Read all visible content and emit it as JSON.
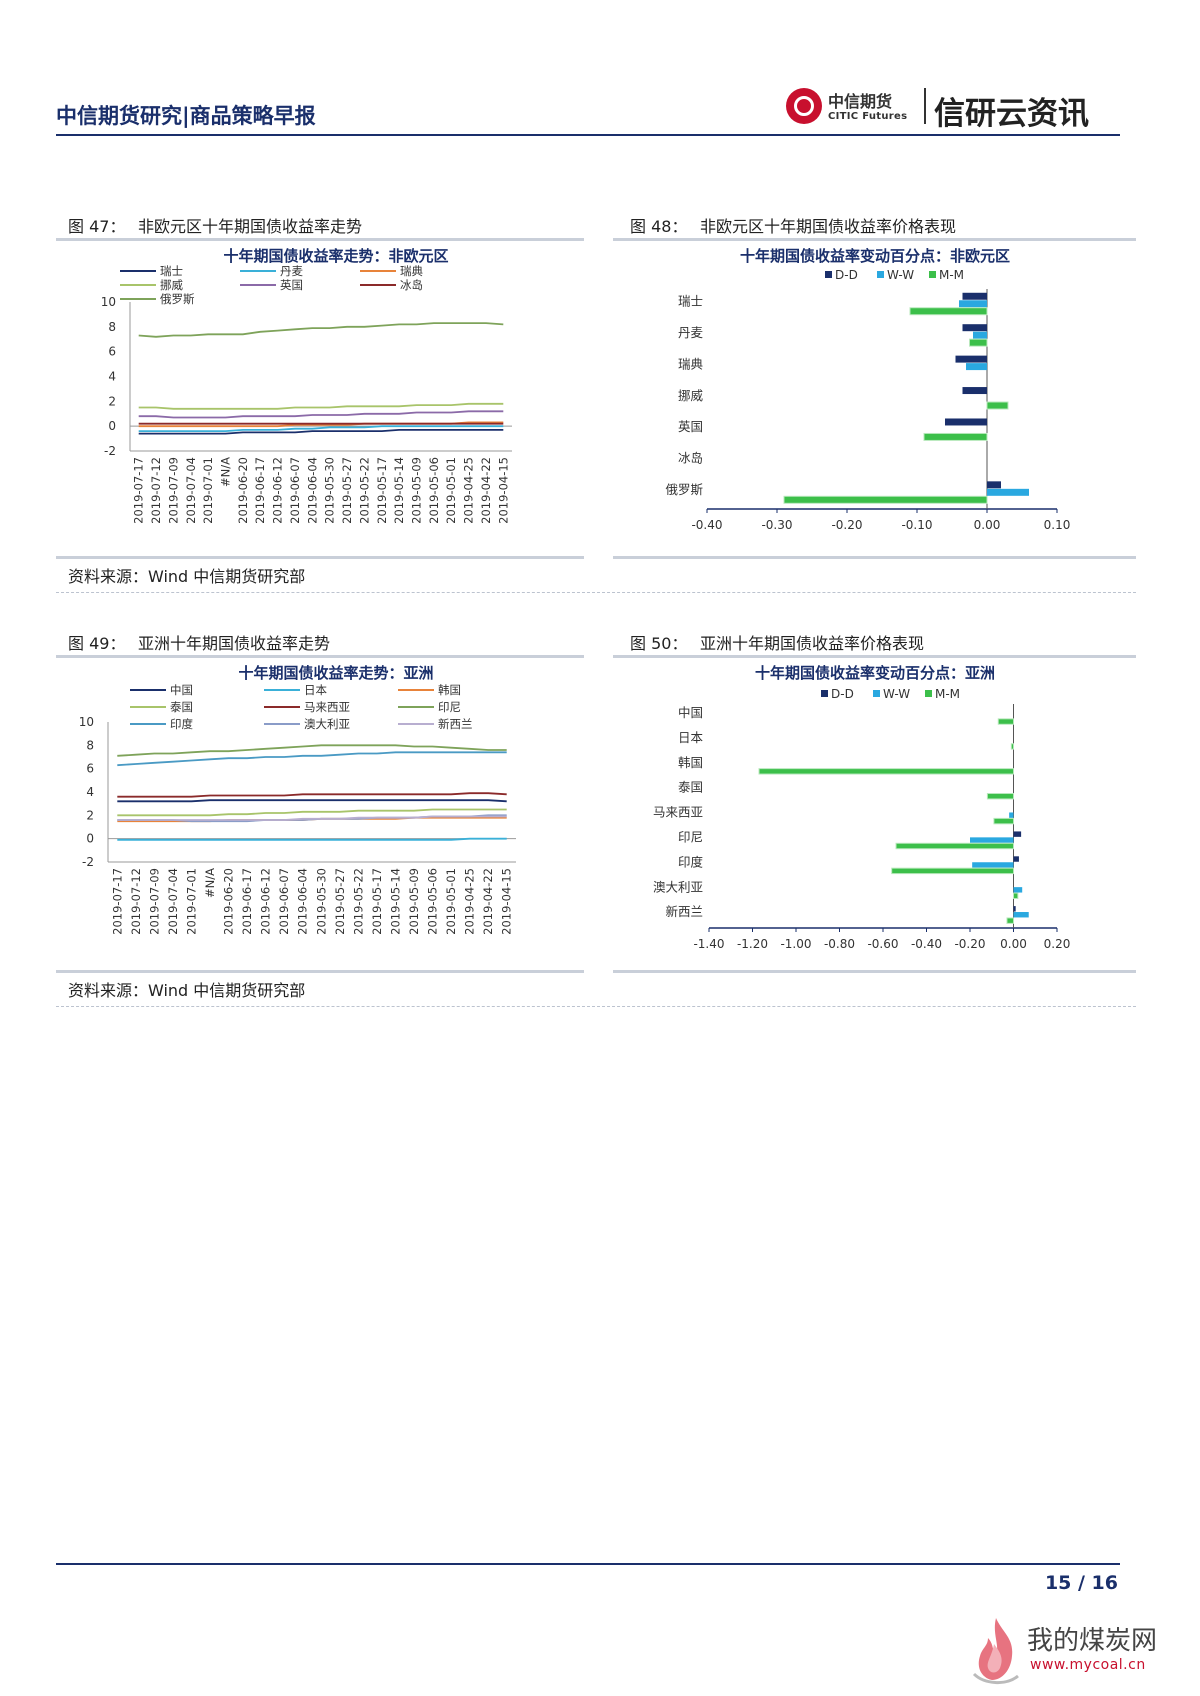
{
  "header": {
    "title": "中信期货研究|商品策略早报",
    "logo_cn": "中信期货",
    "logo_en": "CITIC Futures",
    "brand": "信研云资讯"
  },
  "fig47": {
    "label": "图 47：",
    "caption": "非欧元区十年期国债收益率走势",
    "source": "资料来源：Wind  中信期货研究部"
  },
  "fig48": {
    "label": "图 48：",
    "caption": "非欧元区十年期国债收益率价格表现"
  },
  "fig49": {
    "label": "图 49：",
    "caption": "亚洲十年期国债收益率走势",
    "source": "资料来源：Wind  中信期货研究部"
  },
  "fig50": {
    "label": "图 50：",
    "caption": "亚洲十年期国债收益率价格表现"
  },
  "page": {
    "number": "15 / 16"
  },
  "watermark": {
    "text": "我的煤炭网",
    "url": "www.mycoal.cn"
  },
  "chart_data": [
    {
      "id": "c47",
      "type": "line",
      "title": "十年期国债收益率走势：非欧元区",
      "ylim": [
        -2,
        10
      ],
      "yticks": [
        -2,
        0,
        2,
        4,
        6,
        8,
        10
      ],
      "x": [
        "2019-07-17",
        "2019-07-12",
        "2019-07-09",
        "2019-07-04",
        "2019-07-01",
        "#N/A",
        "2019-06-20",
        "2019-06-17",
        "2019-06-12",
        "2019-06-07",
        "2019-06-04",
        "2019-05-30",
        "2019-05-27",
        "2019-05-22",
        "2019-05-17",
        "2019-05-14",
        "2019-05-09",
        "2019-05-06",
        "2019-05-01",
        "2019-04-25",
        "2019-04-22",
        "2019-04-15"
      ],
      "series": [
        {
          "name": "瑞士",
          "color": "#1a2f6b",
          "values": [
            -0.6,
            -0.6,
            -0.6,
            -0.6,
            -0.6,
            -0.6,
            -0.5,
            -0.5,
            -0.5,
            -0.5,
            -0.4,
            -0.4,
            -0.4,
            -0.4,
            -0.4,
            -0.3,
            -0.3,
            -0.3,
            -0.3,
            -0.3,
            -0.3,
            -0.3
          ]
        },
        {
          "name": "丹麦",
          "color": "#3ab0d8",
          "values": [
            -0.4,
            -0.4,
            -0.4,
            -0.4,
            -0.4,
            -0.4,
            -0.3,
            -0.3,
            -0.3,
            -0.2,
            -0.2,
            -0.1,
            -0.1,
            -0.1,
            0,
            0,
            0,
            0,
            0,
            0,
            0,
            0
          ]
        },
        {
          "name": "瑞典",
          "color": "#e8833a",
          "values": [
            0,
            0,
            0,
            0,
            0,
            0,
            0,
            0,
            0,
            0.1,
            0.1,
            0.1,
            0.1,
            0.2,
            0.2,
            0.2,
            0.2,
            0.2,
            0.2,
            0.3,
            0.3,
            0.3
          ]
        },
        {
          "name": "挪威",
          "color": "#a8c46a",
          "values": [
            1.5,
            1.5,
            1.4,
            1.4,
            1.4,
            1.4,
            1.4,
            1.4,
            1.4,
            1.5,
            1.5,
            1.5,
            1.6,
            1.6,
            1.6,
            1.6,
            1.7,
            1.7,
            1.7,
            1.8,
            1.8,
            1.8
          ]
        },
        {
          "name": "英国",
          "color": "#8b6aa8",
          "values": [
            0.8,
            0.8,
            0.7,
            0.7,
            0.7,
            0.7,
            0.8,
            0.8,
            0.8,
            0.8,
            0.9,
            0.9,
            0.9,
            1.0,
            1.0,
            1.0,
            1.1,
            1.1,
            1.1,
            1.2,
            1.2,
            1.2
          ]
        },
        {
          "name": "冰岛",
          "color": "#8b2a2a",
          "values": [
            0.2,
            0.2,
            0.2,
            0.2,
            0.2,
            0.2,
            0.2,
            0.2,
            0.2,
            0.2,
            0.2,
            0.2,
            0.2,
            0.2,
            0.2,
            0.2,
            0.2,
            0.2,
            0.2,
            0.2,
            0.2,
            0.2
          ]
        },
        {
          "name": "俄罗斯",
          "color": "#7ea35a",
          "values": [
            7.3,
            7.2,
            7.3,
            7.3,
            7.4,
            7.4,
            7.4,
            7.6,
            7.7,
            7.8,
            7.9,
            7.9,
            8.0,
            8.0,
            8.1,
            8.2,
            8.2,
            8.3,
            8.3,
            8.3,
            8.3,
            8.2
          ]
        }
      ]
    },
    {
      "id": "c48",
      "type": "bar",
      "orientation": "horizontal",
      "title": "十年期国债收益率变动百分点：非欧元区",
      "xlim": [
        -0.4,
        0.1
      ],
      "xticks": [
        "-0.40",
        "-0.30",
        "-0.20",
        "-0.10",
        "0.00",
        "0.10"
      ],
      "categories": [
        "瑞士",
        "丹麦",
        "瑞典",
        "挪威",
        "英国",
        "冰岛",
        "俄罗斯"
      ],
      "series": [
        {
          "name": "D-D",
          "color": "#1a2f6b",
          "values": [
            -0.035,
            -0.035,
            -0.045,
            -0.035,
            -0.06,
            0,
            0.02
          ]
        },
        {
          "name": "W-W",
          "color": "#2aa8e0",
          "values": [
            -0.04,
            -0.02,
            -0.03,
            0,
            0,
            0,
            0.06
          ]
        },
        {
          "name": "M-M",
          "color": "#3cbf4a",
          "values": [
            -0.11,
            -0.025,
            0,
            0.03,
            -0.09,
            0,
            -0.29
          ]
        }
      ]
    },
    {
      "id": "c49",
      "type": "line",
      "title": "十年期国债收益率走势：亚洲",
      "ylim": [
        -2,
        10
      ],
      "yticks": [
        -2,
        0,
        2,
        4,
        6,
        8,
        10
      ],
      "x": [
        "2019-07-17",
        "2019-07-12",
        "2019-07-09",
        "2019-07-04",
        "2019-07-01",
        "#N/A",
        "2019-06-20",
        "2019-06-17",
        "2019-06-12",
        "2019-06-07",
        "2019-06-04",
        "2019-05-30",
        "2019-05-27",
        "2019-05-22",
        "2019-05-17",
        "2019-05-14",
        "2019-05-09",
        "2019-05-06",
        "2019-05-01",
        "2019-04-25",
        "2019-04-22",
        "2019-04-15"
      ],
      "series": [
        {
          "name": "中国",
          "color": "#1a2f6b",
          "values": [
            3.2,
            3.2,
            3.2,
            3.2,
            3.2,
            3.3,
            3.3,
            3.3,
            3.3,
            3.3,
            3.3,
            3.3,
            3.3,
            3.3,
            3.3,
            3.3,
            3.3,
            3.3,
            3.3,
            3.3,
            3.3,
            3.2
          ]
        },
        {
          "name": "日本",
          "color": "#3ab0d8",
          "values": [
            -0.1,
            -0.1,
            -0.1,
            -0.1,
            -0.1,
            -0.1,
            -0.1,
            -0.1,
            -0.1,
            -0.1,
            -0.1,
            -0.1,
            -0.1,
            -0.1,
            -0.1,
            -0.1,
            -0.1,
            -0.1,
            -0.1,
            0,
            0,
            0
          ]
        },
        {
          "name": "韩国",
          "color": "#e8833a",
          "values": [
            1.5,
            1.5,
            1.5,
            1.5,
            1.5,
            1.5,
            1.6,
            1.6,
            1.6,
            1.6,
            1.6,
            1.7,
            1.7,
            1.7,
            1.7,
            1.7,
            1.8,
            1.8,
            1.8,
            1.8,
            1.8,
            1.8
          ]
        },
        {
          "name": "泰国",
          "color": "#a8c46a",
          "values": [
            2.0,
            2.0,
            2.0,
            2.0,
            2.0,
            2.0,
            2.1,
            2.1,
            2.2,
            2.2,
            2.3,
            2.3,
            2.3,
            2.4,
            2.4,
            2.4,
            2.4,
            2.5,
            2.5,
            2.5,
            2.5,
            2.5
          ]
        },
        {
          "name": "马来西亚",
          "color": "#8b2a2a",
          "values": [
            3.6,
            3.6,
            3.6,
            3.6,
            3.6,
            3.7,
            3.7,
            3.7,
            3.7,
            3.7,
            3.8,
            3.8,
            3.8,
            3.8,
            3.8,
            3.8,
            3.8,
            3.8,
            3.8,
            3.9,
            3.9,
            3.8
          ]
        },
        {
          "name": "印尼",
          "color": "#7ea35a",
          "values": [
            7.1,
            7.2,
            7.3,
            7.3,
            7.4,
            7.5,
            7.5,
            7.6,
            7.7,
            7.8,
            7.9,
            8.0,
            8.0,
            8.0,
            8.0,
            8.0,
            7.9,
            7.9,
            7.8,
            7.7,
            7.6,
            7.6
          ]
        },
        {
          "name": "印度",
          "color": "#4a9ac4",
          "values": [
            6.3,
            6.4,
            6.5,
            6.6,
            6.7,
            6.8,
            6.9,
            6.9,
            7.0,
            7.0,
            7.1,
            7.1,
            7.2,
            7.3,
            7.3,
            7.4,
            7.4,
            7.4,
            7.4,
            7.4,
            7.4,
            7.4
          ]
        },
        {
          "name": "澳大利亚",
          "color": "#8a9cc8",
          "values": [
            1.6,
            1.6,
            1.6,
            1.6,
            1.5,
            1.5,
            1.5,
            1.5,
            1.6,
            1.6,
            1.6,
            1.7,
            1.7,
            1.7,
            1.8,
            1.8,
            1.8,
            1.9,
            1.9,
            1.9,
            2.0,
            2.0
          ]
        },
        {
          "name": "新西兰",
          "color": "#b8aed0",
          "values": [
            1.6,
            1.6,
            1.6,
            1.6,
            1.6,
            1.6,
            1.6,
            1.6,
            1.6,
            1.6,
            1.7,
            1.7,
            1.7,
            1.8,
            1.8,
            1.8,
            1.8,
            1.9,
            1.9,
            1.9,
            1.9,
            1.9
          ]
        }
      ]
    },
    {
      "id": "c50",
      "type": "bar",
      "orientation": "horizontal",
      "title": "十年期国债收益率变动百分点：亚洲",
      "xlim": [
        -1.4,
        0.2
      ],
      "xticks": [
        "-1.40",
        "-1.20",
        "-1.00",
        "-0.80",
        "-0.60",
        "-0.40",
        "-0.20",
        "0.00",
        "0.20"
      ],
      "categories": [
        "中国",
        "日本",
        "韩国",
        "泰国",
        "马来西亚",
        "印尼",
        "印度",
        "澳大利亚",
        "新西兰"
      ],
      "series": [
        {
          "name": "D-D",
          "color": "#1a2f6b",
          "values": [
            0,
            0,
            0,
            0,
            0,
            0.035,
            0.025,
            0,
            0.01
          ]
        },
        {
          "name": "W-W",
          "color": "#2aa8e0",
          "values": [
            0,
            0,
            0,
            0,
            -0.02,
            -0.2,
            -0.19,
            0.04,
            0.07
          ]
        },
        {
          "name": "M-M",
          "color": "#3cbf4a",
          "values": [
            -0.07,
            -0.01,
            -1.17,
            -0.12,
            -0.09,
            -0.54,
            -0.56,
            0.02,
            -0.03
          ]
        }
      ]
    }
  ]
}
